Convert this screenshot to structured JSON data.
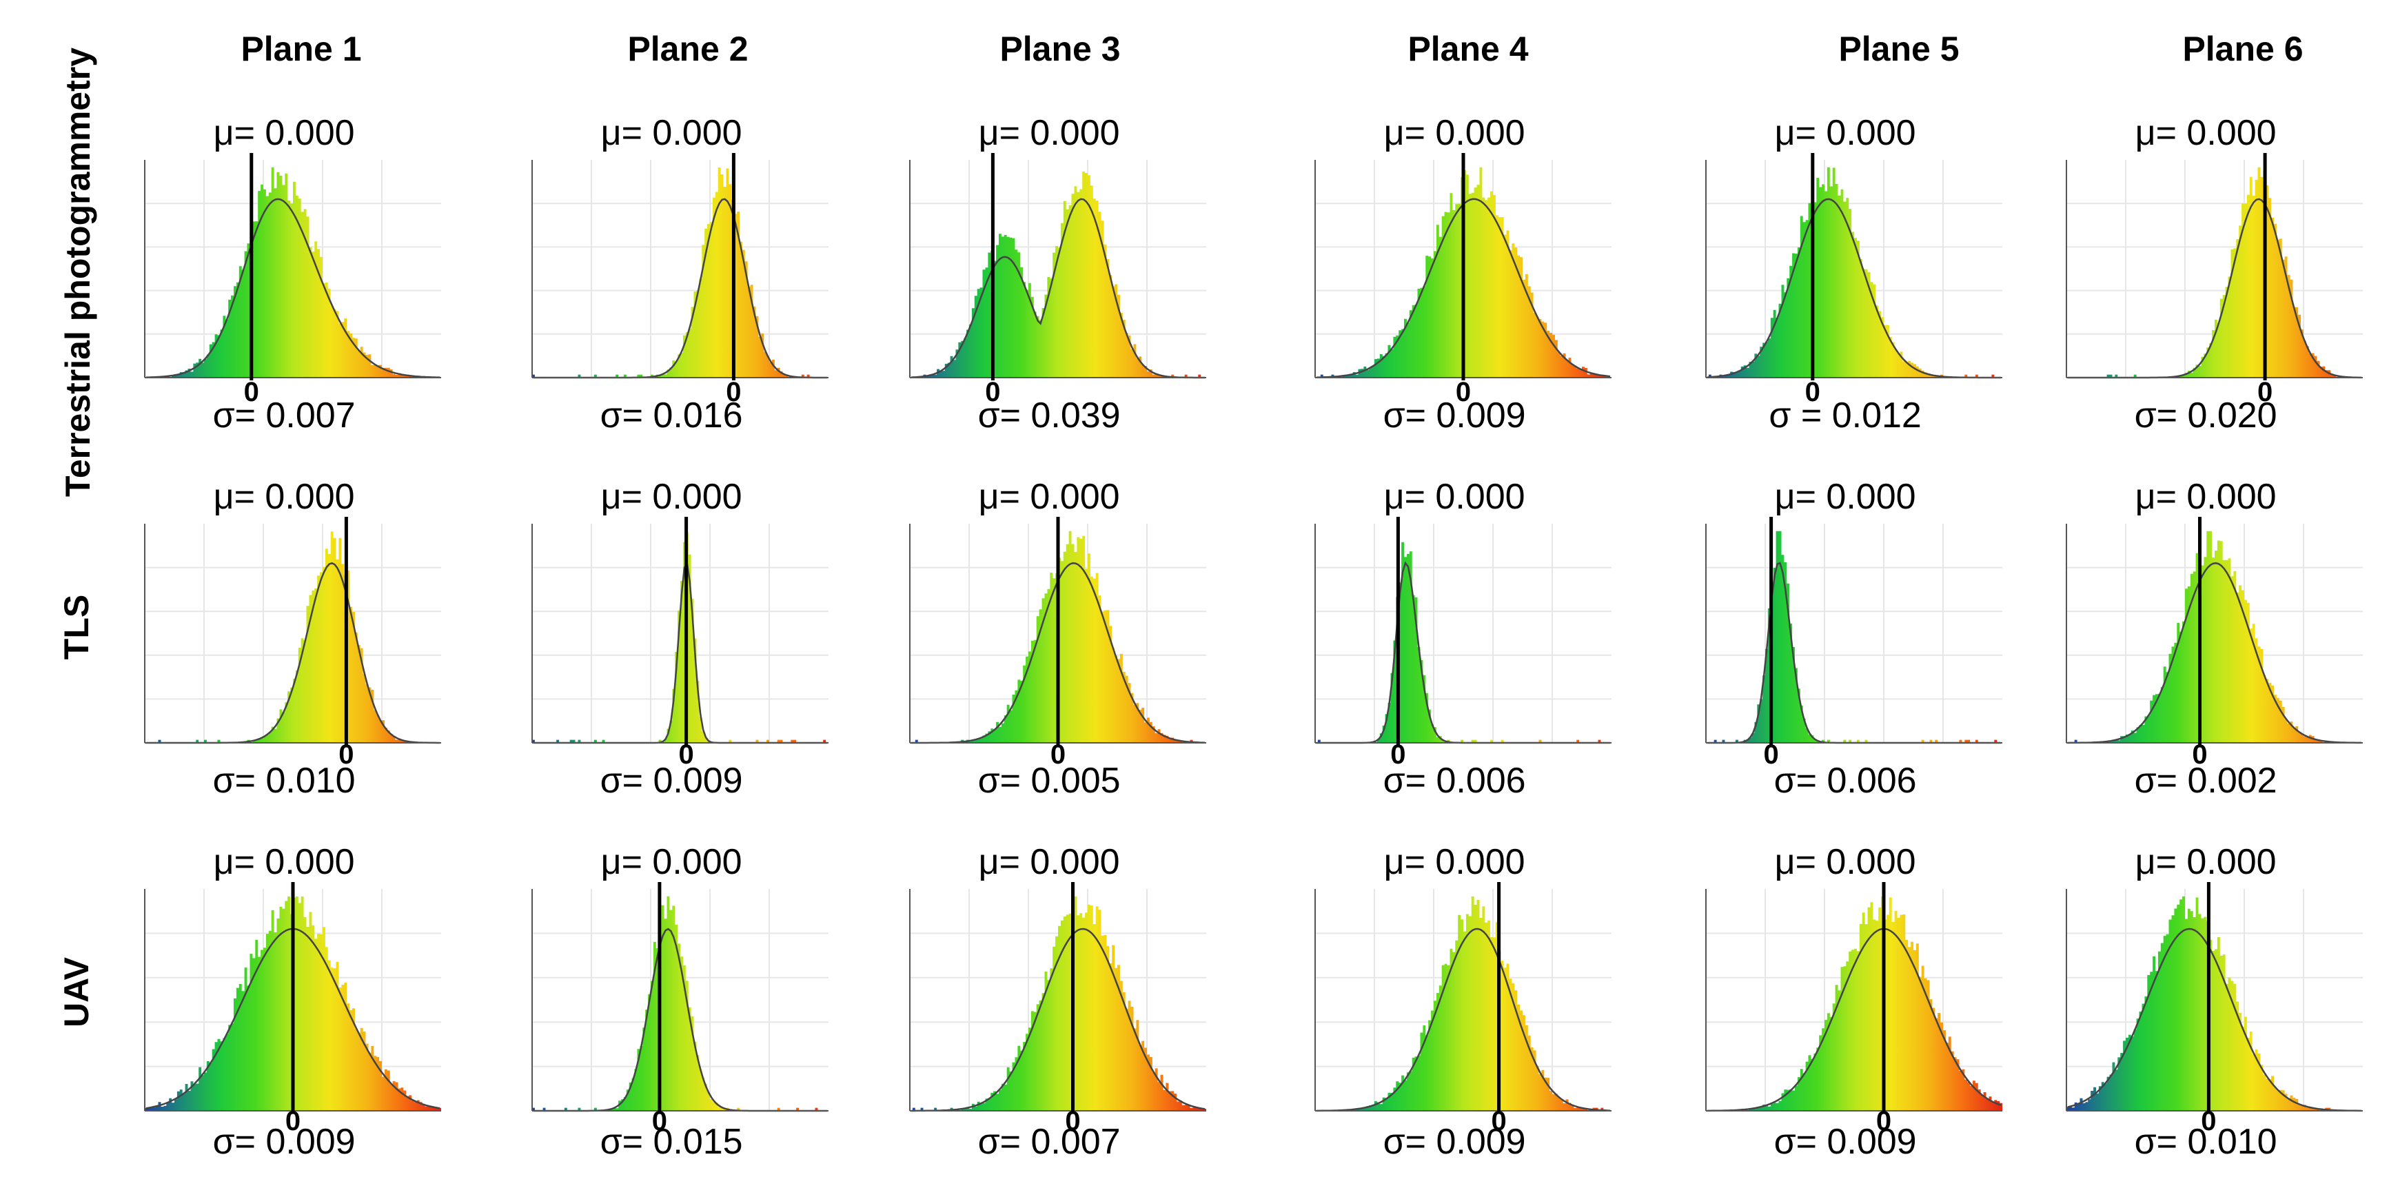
{
  "figure": {
    "columns": [
      "Plane 1",
      "Plane 2",
      "Plane 3",
      "Plane 4",
      "Plane 5",
      "Plane 6"
    ],
    "rows": [
      "Terrestrial photogrammetry",
      "TLS",
      "UAV"
    ],
    "mean_prefix": "μ= ",
    "sigma_prefix": "σ= ",
    "zero_label": "0"
  },
  "chart_data": [
    {
      "type": "histogram",
      "row": "Terrestrial photogrammetry",
      "column": "Plane 1",
      "mean": "0.000",
      "sigma": "0.007",
      "sigma_label": "σ= 0.007",
      "marker": "0",
      "shape": {
        "peak": 0.36,
        "skew": 0.45,
        "spread": 0.17,
        "second_peak": null
      }
    },
    {
      "type": "histogram",
      "row": "Terrestrial photogrammetry",
      "column": "Plane 2",
      "mean": "0.000",
      "sigma": "0.016",
      "sigma_label": "σ= 0.016",
      "marker": "0",
      "shape": {
        "peak": 0.68,
        "skew": -0.2,
        "spread": 0.08,
        "second_peak": null
      }
    },
    {
      "type": "histogram",
      "row": "Terrestrial photogrammetry",
      "column": "Plane 3",
      "mean": "0.000",
      "sigma": "0.039",
      "sigma_label": "σ= 0.039",
      "marker": "0",
      "shape": {
        "peak": 0.28,
        "skew": 0.2,
        "spread": 0.1,
        "second_peak": 0.58
      }
    },
    {
      "type": "histogram",
      "row": "Terrestrial photogrammetry",
      "column": "Plane 4",
      "mean": "0.000",
      "sigma": "0.009",
      "sigma_label": "σ= 0.009",
      "marker": "0",
      "shape": {
        "peak": 0.5,
        "skew": 0.1,
        "spread": 0.15,
        "second_peak": null
      }
    },
    {
      "type": "histogram",
      "row": "Terrestrial photogrammetry",
      "column": "Plane 5",
      "mean": "0.000",
      "sigma": "0.012",
      "sigma_label": "σ =  0.012",
      "marker": "0",
      "shape": {
        "peak": 0.36,
        "skew": 0.2,
        "spread": 0.13,
        "second_peak": null
      }
    },
    {
      "type": "histogram",
      "row": "Terrestrial photogrammetry",
      "column": "Plane 6",
      "mean": "0.000",
      "sigma": "0.020",
      "sigma_label": "σ= 0.020",
      "marker": "0",
      "shape": {
        "peak": 0.67,
        "skew": -0.1,
        "spread": 0.09,
        "second_peak": null
      }
    },
    {
      "type": "histogram",
      "row": "TLS",
      "column": "Plane 1",
      "mean": "0.000",
      "sigma": "0.010",
      "sigma_label": "σ= 0.010",
      "marker": "0",
      "shape": {
        "peak": 0.68,
        "skew": -0.3,
        "spread": 0.1,
        "second_peak": null
      }
    },
    {
      "type": "histogram",
      "row": "TLS",
      "column": "Plane 2",
      "mean": "0.000",
      "sigma": "0.009",
      "sigma_label": "σ= 0.009",
      "marker": "0",
      "shape": {
        "peak": 0.52,
        "skew": 0.0,
        "spread": 0.025,
        "second_peak": null
      }
    },
    {
      "type": "histogram",
      "row": "TLS",
      "column": "Plane 3",
      "mean": "0.000",
      "sigma": "0.005",
      "sigma_label": "σ= 0.005",
      "marker": "0",
      "shape": {
        "peak": 0.5,
        "skew": 0.2,
        "spread": 0.13,
        "second_peak": null
      }
    },
    {
      "type": "histogram",
      "row": "TLS",
      "column": "Plane 4",
      "mean": "0.000",
      "sigma": "0.006",
      "sigma_label": "σ= 0.006",
      "marker": "0",
      "shape": {
        "peak": 0.28,
        "skew": 0.5,
        "spread": 0.05,
        "second_peak": null
      }
    },
    {
      "type": "histogram",
      "row": "TLS",
      "column": "Plane 5",
      "mean": "0.000",
      "sigma": "0.006",
      "sigma_label": "σ= 0.006",
      "marker": "0",
      "shape": {
        "peak": 0.22,
        "skew": 0.4,
        "spread": 0.05,
        "second_peak": null
      }
    },
    {
      "type": "histogram",
      "row": "TLS",
      "column": "Plane 6",
      "mean": "0.000",
      "sigma": "0.002",
      "sigma_label": "σ= 0.002",
      "marker": "0",
      "shape": {
        "peak": 0.45,
        "skew": 0.2,
        "spread": 0.13,
        "second_peak": null
      }
    },
    {
      "type": "histogram",
      "row": "UAV",
      "column": "Plane 1",
      "mean": "0.000",
      "sigma": "0.009",
      "sigma_label": "σ= 0.009",
      "marker": "0",
      "shape": {
        "peak": 0.5,
        "skew": 0.0,
        "spread": 0.17,
        "second_peak": null
      }
    },
    {
      "type": "histogram",
      "row": "UAV",
      "column": "Plane 2",
      "mean": "0.000",
      "sigma": "0.015",
      "sigma_label": "σ= 0.015",
      "marker": "0",
      "shape": {
        "peak": 0.43,
        "skew": 0.2,
        "spread": 0.07,
        "second_peak": null
      }
    },
    {
      "type": "histogram",
      "row": "UAV",
      "column": "Plane 3",
      "mean": "0.000",
      "sigma": "0.007",
      "sigma_label": "σ= 0.007",
      "marker": "0",
      "shape": {
        "peak": 0.55,
        "skew": 0.1,
        "spread": 0.14,
        "second_peak": null
      }
    },
    {
      "type": "histogram",
      "row": "UAV",
      "column": "Plane 4",
      "mean": "0.000",
      "sigma": "0.009",
      "sigma_label": "σ= 0.009",
      "marker": "0",
      "shape": {
        "peak": 0.62,
        "skew": -0.3,
        "spread": 0.15,
        "second_peak": null
      }
    },
    {
      "type": "histogram",
      "row": "UAV",
      "column": "Plane 5",
      "mean": "0.000",
      "sigma": "0.009",
      "sigma_label": "σ= 0.009",
      "marker": "0",
      "shape": {
        "peak": 0.6,
        "skew": 0.0,
        "spread": 0.15,
        "second_peak": null
      }
    },
    {
      "type": "histogram",
      "row": "UAV",
      "column": "Plane 6",
      "mean": "0.000",
      "sigma": "0.010",
      "sigma_label": "σ= 0.010",
      "marker": "0",
      "shape": {
        "peak": 0.48,
        "skew": -0.2,
        "spread": 0.16,
        "second_peak": null
      }
    }
  ],
  "colors": {
    "ramp": [
      "#1f3fa8",
      "#1d8a78",
      "#1ec83c",
      "#49d81e",
      "#b6e61c",
      "#f2e417",
      "#f5b514",
      "#f56a12",
      "#e22414"
    ],
    "curve": "#444444",
    "axis": "#555555",
    "grid": "#e6e6e6",
    "marker": "#000000"
  }
}
